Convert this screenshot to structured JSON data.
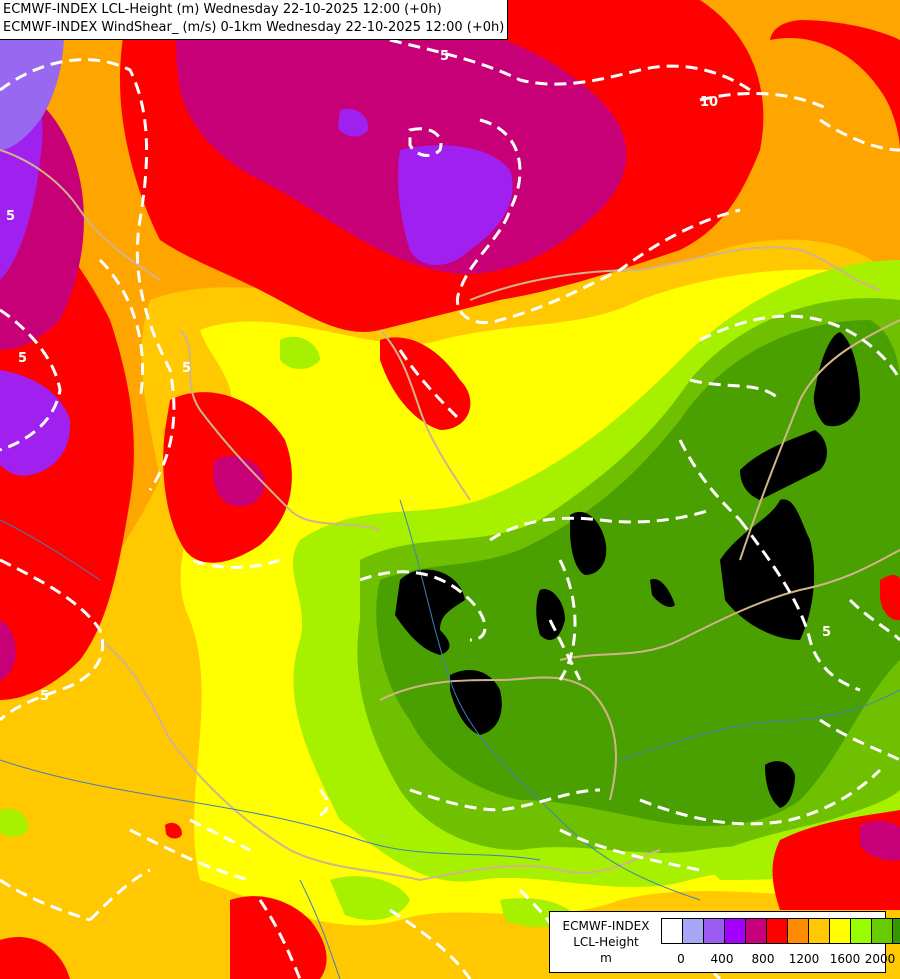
{
  "header": {
    "line1": "ECMWF-INDEX LCL-Height (m) Wednesday 22-10-2025 12:00 (+0h)",
    "line2": "ECMWF-INDEX WindShear_ (m/s) 0-1km Wednesday 22-10-2025 12:00 (+0h)"
  },
  "legend": {
    "model": "ECMWF-INDEX",
    "parameter": "LCL-Height",
    "unit": "m",
    "colors": [
      "#ffffff",
      "#a7a7f5",
      "#9b5cf0",
      "#a300ff",
      "#c8007c",
      "#ff0000",
      "#ff8c00",
      "#ffc800",
      "#ffff00",
      "#99ff00",
      "#66cc00",
      "#339900",
      "#000000"
    ],
    "ticks": [
      "0",
      "400",
      "800",
      "1200",
      "1600",
      "2000"
    ]
  },
  "contour_labels": [
    "5",
    "5",
    "5",
    "5",
    "5",
    "10",
    "5"
  ],
  "colors": {
    "black": "#000000",
    "dkgreen": "#4aa000",
    "green": "#6ec000",
    "lime": "#a6f000",
    "yellow": "#ffff00",
    "gold": "#ffc800",
    "orange": "#ffa500",
    "red": "#ff0000",
    "magenta": "#c80078",
    "purple": "#a020f0",
    "lavender": "#9868f0",
    "border": "#d2b48c",
    "river": "#4080c0",
    "contour": "#ffffff"
  }
}
